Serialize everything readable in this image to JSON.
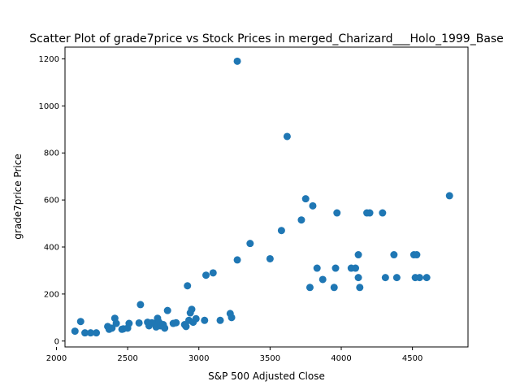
{
  "chart_data": {
    "type": "scatter",
    "title": "Scatter Plot of grade7price vs Stock Prices in merged_Charizard___Holo_1999_Base",
    "xlabel": "S&P 500 Adjusted Close",
    "ylabel": "grade7price Price",
    "xlim": [
      2060,
      4890
    ],
    "ylim": [
      -25,
      1250
    ],
    "xticks": [
      2000,
      2500,
      3000,
      3500,
      4000,
      4500
    ],
    "yticks": [
      0,
      200,
      400,
      600,
      800,
      1000,
      1200
    ],
    "grid": false,
    "point_color": "#1f77b4",
    "points": [
      [
        2130,
        42
      ],
      [
        2170,
        83
      ],
      [
        2200,
        35
      ],
      [
        2240,
        35
      ],
      [
        2280,
        35
      ],
      [
        2360,
        62
      ],
      [
        2370,
        50
      ],
      [
        2390,
        55
      ],
      [
        2410,
        97
      ],
      [
        2420,
        75
      ],
      [
        2460,
        50
      ],
      [
        2470,
        52
      ],
      [
        2500,
        55
      ],
      [
        2510,
        75
      ],
      [
        2580,
        77
      ],
      [
        2590,
        155
      ],
      [
        2640,
        80
      ],
      [
        2650,
        65
      ],
      [
        2670,
        78
      ],
      [
        2690,
        75
      ],
      [
        2700,
        60
      ],
      [
        2710,
        97
      ],
      [
        2720,
        80
      ],
      [
        2730,
        65
      ],
      [
        2750,
        70
      ],
      [
        2760,
        55
      ],
      [
        2780,
        130
      ],
      [
        2820,
        75
      ],
      [
        2840,
        78
      ],
      [
        2900,
        70
      ],
      [
        2910,
        62
      ],
      [
        2920,
        235
      ],
      [
        2930,
        88
      ],
      [
        2940,
        120
      ],
      [
        2950,
        135
      ],
      [
        2960,
        80
      ],
      [
        2980,
        95
      ],
      [
        3040,
        88
      ],
      [
        3050,
        280
      ],
      [
        3100,
        290
      ],
      [
        3150,
        88
      ],
      [
        3220,
        117
      ],
      [
        3230,
        100
      ],
      [
        3270,
        345
      ],
      [
        3270,
        1190
      ],
      [
        3360,
        415
      ],
      [
        3500,
        350
      ],
      [
        3580,
        470
      ],
      [
        3620,
        870
      ],
      [
        3720,
        515
      ],
      [
        3750,
        605
      ],
      [
        3780,
        228
      ],
      [
        3800,
        575
      ],
      [
        3830,
        310
      ],
      [
        3870,
        262
      ],
      [
        3950,
        228
      ],
      [
        3960,
        310
      ],
      [
        3970,
        545
      ],
      [
        4070,
        310
      ],
      [
        4100,
        310
      ],
      [
        4120,
        367
      ],
      [
        4120,
        270
      ],
      [
        4130,
        228
      ],
      [
        4180,
        545
      ],
      [
        4200,
        545
      ],
      [
        4290,
        545
      ],
      [
        4310,
        270
      ],
      [
        4370,
        367
      ],
      [
        4390,
        270
      ],
      [
        4510,
        367
      ],
      [
        4520,
        270
      ],
      [
        4530,
        367
      ],
      [
        4550,
        270
      ],
      [
        4600,
        270
      ],
      [
        4760,
        618
      ]
    ]
  }
}
